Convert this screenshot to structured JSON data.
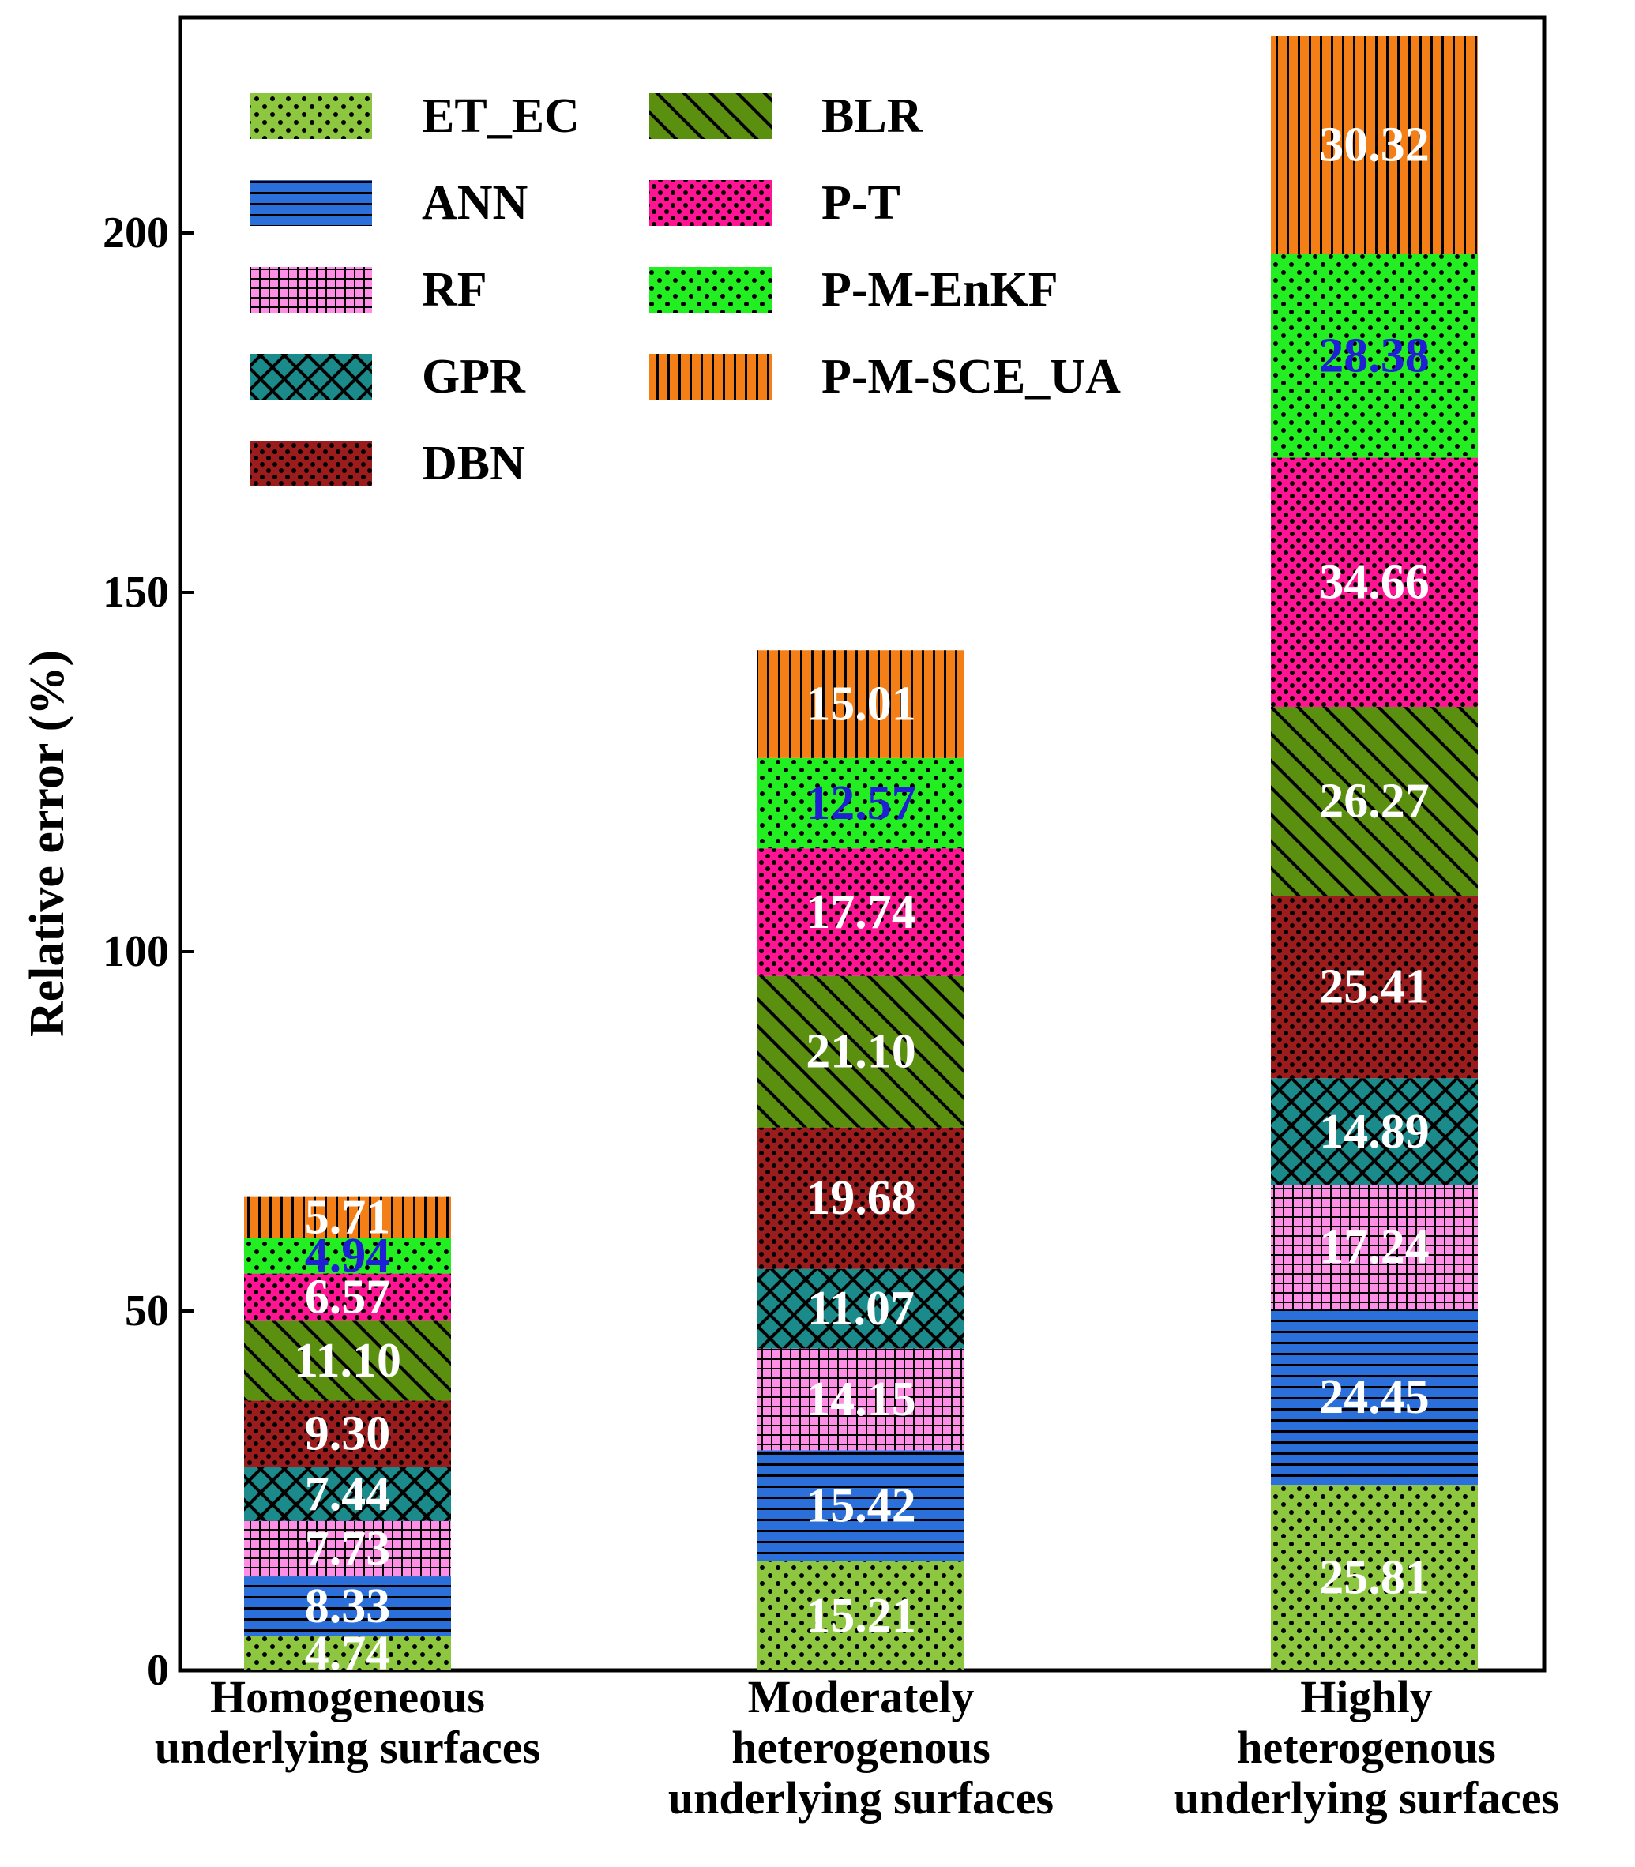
{
  "chart_data": {
    "type": "bar",
    "stacked": true,
    "title": "",
    "xlabel": "",
    "ylabel": "Relative error (%)",
    "ylim": [
      0,
      230
    ],
    "yticks": [
      0,
      50,
      100,
      150,
      200
    ],
    "grid": false,
    "legend_position": "top-left",
    "categories": [
      [
        "Homogeneous",
        "underlying surfaces"
      ],
      [
        "Moderately",
        "heterogenous",
        "underlying surfaces"
      ],
      [
        "Highly",
        "heterogenous",
        "underlying surfaces"
      ]
    ],
    "series": [
      {
        "name": "ET_EC",
        "values": [
          4.74,
          15.21,
          25.81
        ],
        "color": "#8dc63f",
        "pattern": "dots-sparse",
        "label_color": "#ffffff"
      },
      {
        "name": "ANN",
        "values": [
          8.33,
          15.42,
          24.45
        ],
        "color": "#2b6fdb",
        "pattern": "hlines",
        "label_color": "#ffffff"
      },
      {
        "name": "RF",
        "values": [
          7.73,
          14.15,
          17.24
        ],
        "color": "#ff8ee6",
        "pattern": "grid",
        "label_color": "#ffffff"
      },
      {
        "name": "GPR",
        "values": [
          7.44,
          11.07,
          14.89
        ],
        "color": "#1a8a8a",
        "pattern": "crosshatch",
        "label_color": "#ffffff"
      },
      {
        "name": "DBN",
        "values": [
          9.3,
          19.68,
          25.41
        ],
        "color": "#9b1c1c",
        "pattern": "dots-dense",
        "label_color": "#ffffff"
      },
      {
        "name": "BLR",
        "values": [
          11.1,
          21.1,
          26.27
        ],
        "color": "#5a8f10",
        "pattern": "diag",
        "label_color": "#ffffff"
      },
      {
        "name": "P-T",
        "values": [
          6.57,
          17.74,
          34.66
        ],
        "color": "#ff1493",
        "pattern": "dots-dense",
        "label_color": "#ffffff"
      },
      {
        "name": "P-M-EnKF",
        "values": [
          4.94,
          12.57,
          28.38
        ],
        "color": "#22ee22",
        "pattern": "dots-sparse",
        "label_color": "#1f1fd6"
      },
      {
        "name": "P-M-SCE_UA",
        "values": [
          5.71,
          15.01,
          30.32
        ],
        "color": "#f57f17",
        "pattern": "vlines",
        "label_color": "#ffffff"
      }
    ],
    "data_labels": [
      [
        "4.74",
        "8.33",
        "7.73",
        "7.44",
        "9.30",
        "11.10",
        "6.57",
        "4.94",
        "5.71"
      ],
      [
        "15.21",
        "15.42",
        "14.15",
        "11.07",
        "19.68",
        "21.10",
        "17.74",
        "12.57",
        "15.01"
      ],
      [
        "25.81",
        "24.45",
        "17.24",
        "14.89",
        "25.41",
        "26.27",
        "34.66",
        "28.38",
        "30.32"
      ]
    ]
  }
}
